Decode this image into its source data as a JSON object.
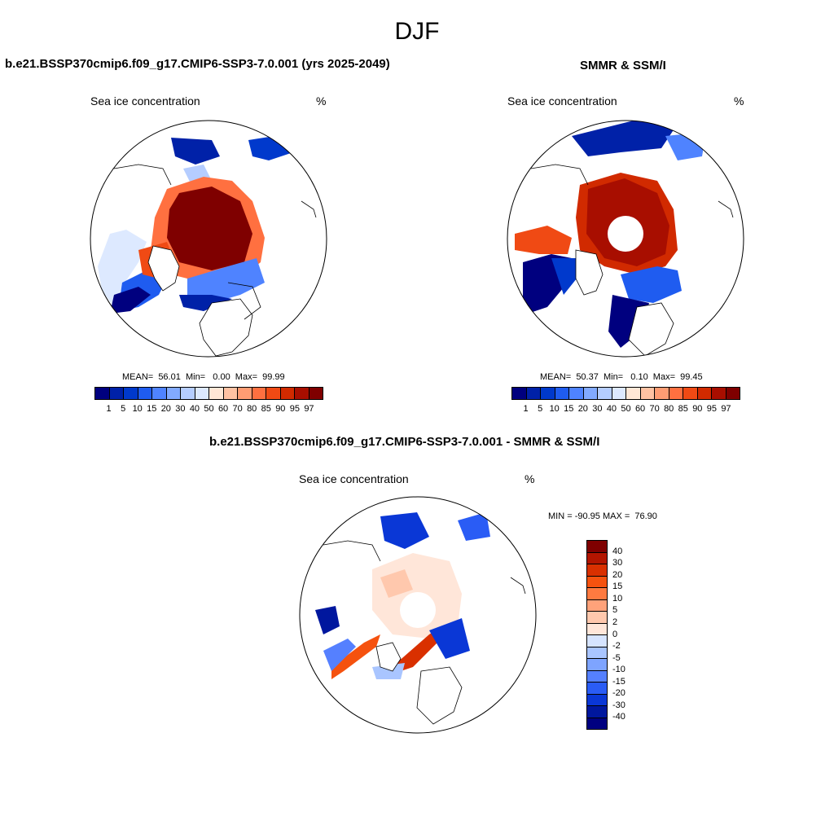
{
  "figure_title": "DJF",
  "colors": {
    "abs_scale": [
      "#00007f",
      "#0021a8",
      "#0039cc",
      "#1f5cf0",
      "#4f83ff",
      "#82aaff",
      "#b5cdff",
      "#dde9ff",
      "#ffe7d6",
      "#ffc2a3",
      "#ff9c73",
      "#ff7040",
      "#f04a14",
      "#d12a00",
      "#a80e00",
      "#7f0000"
    ],
    "diff_scale": [
      "#7f0000",
      "#b31500",
      "#d93000",
      "#f5520f",
      "#ff7a40",
      "#ffa27a",
      "#ffc8ad",
      "#ffe6d9",
      "#d6e4ff",
      "#a9c5ff",
      "#7ea4ff",
      "#5580ff",
      "#2a5cf5",
      "#0a37d6",
      "#00179e",
      "#000080"
    ],
    "land": "#ffffff",
    "coast": "#000000"
  },
  "panels": {
    "model": {
      "title": "b.e21.BSSP370cmip6.f09_g17.CMIP6-SSP3-7.0.001 (yrs 2025-2049)",
      "left_label": "Sea ice concentration",
      "right_label": "%",
      "stats": "MEAN=  56.01  Min=   0.00  Max=  99.99",
      "ticks": [
        "1",
        "5",
        "10",
        "15",
        "20",
        "30",
        "40",
        "50",
        "60",
        "70",
        "80",
        "85",
        "90",
        "95",
        "97"
      ]
    },
    "obs": {
      "title": "SMMR & SSM/I",
      "left_label": "Sea ice concentration",
      "right_label": "%",
      "stats": "MEAN=  50.37  Min=   0.10  Max=  99.45",
      "ticks": [
        "1",
        "5",
        "10",
        "15",
        "20",
        "30",
        "40",
        "50",
        "60",
        "70",
        "80",
        "85",
        "90",
        "95",
        "97"
      ]
    },
    "diff": {
      "title": "b.e21.BSSP370cmip6.f09_g17.CMIP6-SSP3-7.0.001 - SMMR & SSM/I",
      "left_label": "Sea ice concentration",
      "right_label": "%",
      "stats": "MIN = -90.95 MAX =  76.90",
      "ticks": [
        "40",
        "30",
        "20",
        "15",
        "10",
        "5",
        "2",
        "0",
        "-2",
        "-5",
        "-10",
        "-15",
        "-20",
        "-30",
        "-40"
      ]
    }
  }
}
